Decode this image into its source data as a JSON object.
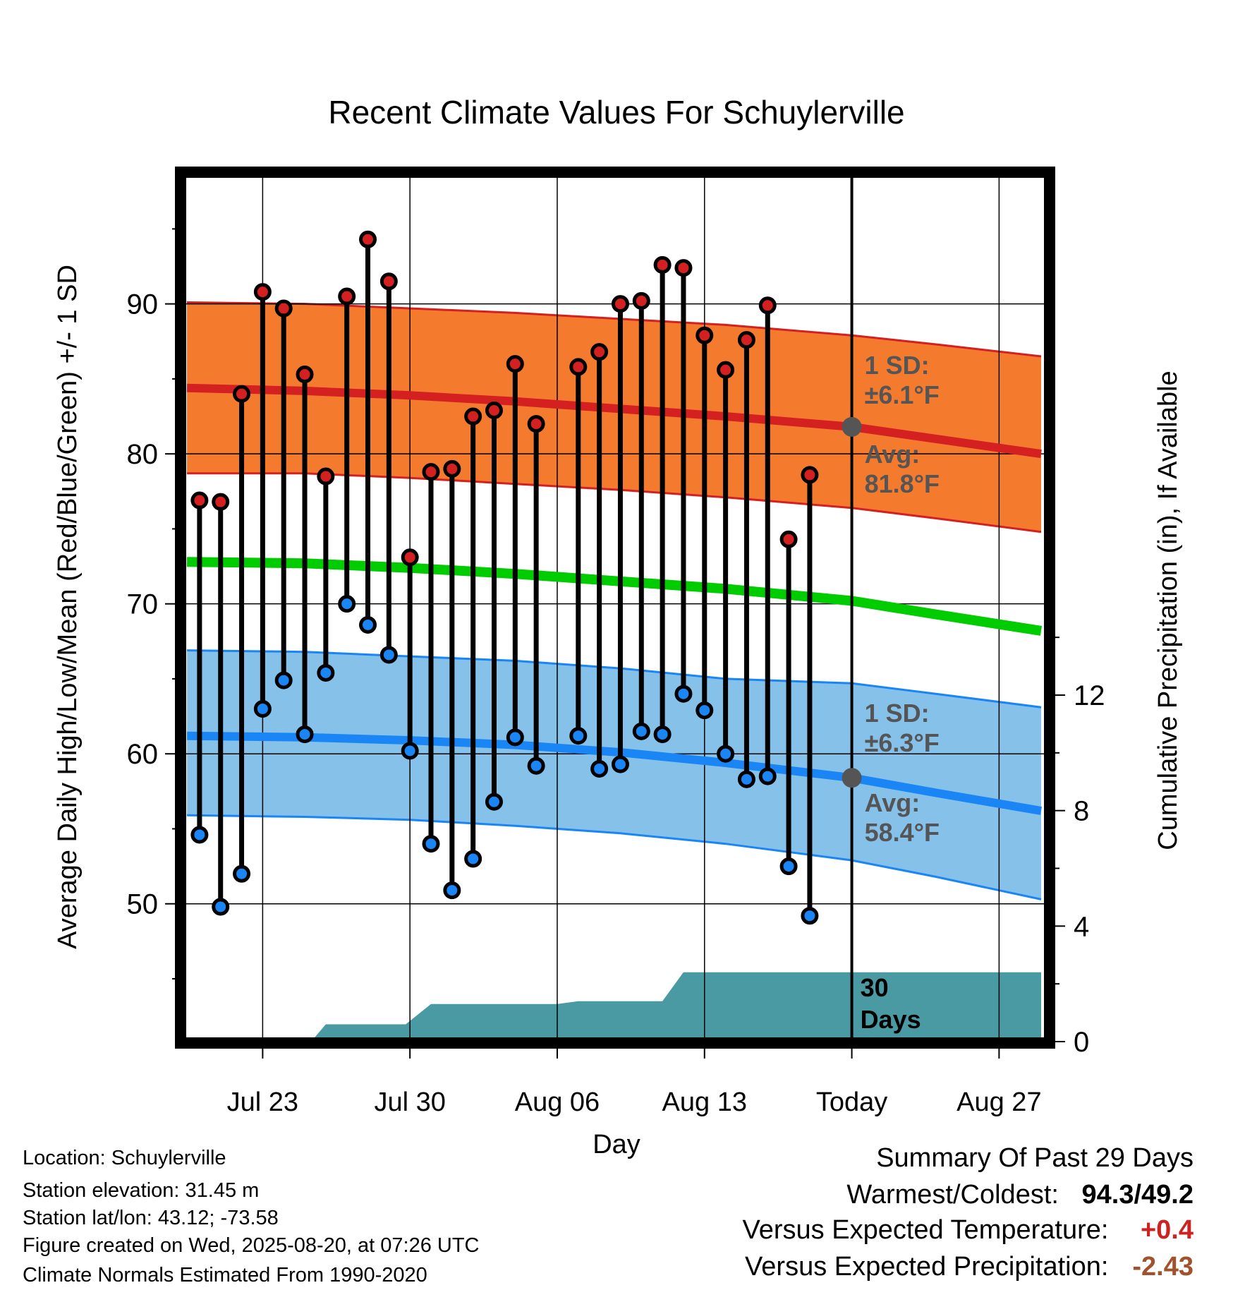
{
  "chart_data": {
    "type": "line",
    "title": "Recent Climate Values For Schuylerville",
    "xlabel": "Day",
    "ylabel": "Average Daily High/Low/Mean (Red/Blue/Green) +/- 1 SD",
    "ylabel_right": "Cumulative Precipitation (in), If Available",
    "x_ticks": [
      {
        "day": 3,
        "label": "Jul 23"
      },
      {
        "day": 10,
        "label": "Jul 30"
      },
      {
        "day": 17,
        "label": "Aug 06"
      },
      {
        "day": 24,
        "label": "Aug 13"
      },
      {
        "day": 31,
        "label": "Today"
      },
      {
        "day": 38,
        "label": "Aug 27"
      }
    ],
    "y_ticks": [
      50,
      60,
      70,
      80,
      90
    ],
    "y_ticks_right": [
      0,
      4,
      8,
      12
    ],
    "ylim": [
      41,
      98.5
    ],
    "ylim_right": [
      0,
      24
    ],
    "xlim": [
      -0.7,
      40.2
    ],
    "today_label": "30 Days",
    "normals": {
      "days": [
        -0.6,
        5,
        10,
        15,
        20,
        25,
        31,
        35,
        40
      ],
      "high_avg": [
        84.4,
        84.2,
        83.9,
        83.5,
        83.0,
        82.5,
        81.8,
        81.0,
        80.0
      ],
      "high_upper": [
        90.1,
        90.0,
        89.7,
        89.4,
        89.0,
        88.6,
        87.9,
        87.3,
        86.5
      ],
      "high_lower": [
        78.7,
        78.7,
        78.4,
        78.0,
        77.6,
        77.1,
        76.4,
        75.7,
        74.8
      ],
      "mean_avg": [
        72.8,
        72.7,
        72.4,
        72.0,
        71.5,
        71.0,
        70.2,
        69.3,
        68.2
      ],
      "low_avg": [
        61.2,
        61.1,
        60.9,
        60.6,
        60.1,
        59.4,
        58.4,
        57.4,
        56.2
      ],
      "low_upper": [
        66.9,
        66.8,
        66.5,
        66.2,
        65.7,
        65.0,
        64.7,
        64.0,
        63.1
      ],
      "low_lower": [
        55.9,
        55.8,
        55.6,
        55.2,
        54.7,
        54.0,
        52.9,
        51.8,
        50.3
      ]
    },
    "high_avg_label": "Avg: 81.8°F",
    "high_sd_label": "1 SD: ±6.1°F",
    "low_avg_label": "Avg: 58.4°F",
    "low_sd_label": "1 SD: ±6.3°F",
    "series": [
      {
        "name": "High",
        "days": [
          0,
          1,
          2,
          3,
          4,
          5,
          6,
          7,
          8,
          9,
          10,
          11,
          12,
          13,
          14,
          15,
          16,
          17,
          18,
          19,
          20,
          21,
          22,
          23,
          24,
          25,
          26,
          27,
          28,
          29
        ],
        "values": [
          76.9,
          76.8,
          84.0,
          90.8,
          89.7,
          85.3,
          78.5,
          90.5,
          94.3,
          91.5,
          73.1,
          78.8,
          79.0,
          82.5,
          82.9,
          86.0,
          82.0,
          null,
          85.8,
          86.8,
          90.0,
          90.2,
          92.6,
          92.4,
          87.9,
          85.6,
          87.6,
          89.9,
          74.3,
          78.6
        ]
      },
      {
        "name": "Low",
        "days": [
          0,
          1,
          2,
          3,
          4,
          5,
          6,
          7,
          8,
          9,
          10,
          11,
          12,
          13,
          14,
          15,
          16,
          17,
          18,
          19,
          20,
          21,
          22,
          23,
          24,
          25,
          26,
          27,
          28,
          29
        ],
        "values": [
          54.6,
          49.8,
          52.0,
          63.0,
          64.9,
          61.3,
          65.4,
          70.0,
          68.6,
          66.6,
          60.2,
          54.0,
          50.9,
          53.0,
          56.8,
          61.1,
          59.2,
          null,
          61.2,
          59.0,
          59.3,
          61.5,
          61.3,
          64.0,
          62.9,
          60.0,
          58.3,
          58.5,
          52.5,
          49.2
        ]
      }
    ],
    "precip": {
      "days": [
        5.3,
        6.0,
        9.8,
        11.0,
        17.0,
        18.0,
        22.0,
        23.0,
        40.0
      ],
      "values": [
        0.0,
        0.6,
        0.6,
        1.3,
        1.3,
        1.4,
        1.4,
        2.4,
        2.4
      ]
    }
  },
  "info": {
    "location": "Location: Schuylerville",
    "elevation": "Station elevation: 31.45 m",
    "latlon": "Station lat/lon: 43.12; -73.58",
    "created": "Figure created on Wed, 2025-08-20, at 07:26 UTC",
    "normals": "Climate Normals Estimated From 1990-2020"
  },
  "summary": {
    "title": "Summary Of Past 29 Days",
    "warmest_label": "Warmest/Coldest:",
    "warmest_value": "94.3/49.2",
    "temp_label": "Versus Expected Temperature:",
    "temp_value": "+0.4",
    "temp_color": "#cc2222",
    "precip_label": "Versus Expected Precipitation:",
    "precip_value": "-2.43",
    "precip_color": "#a0522d"
  },
  "colors": {
    "high_band": "#f47b2e",
    "high_line": "#d42020",
    "mean_line": "#00cc00",
    "low_band": "#85c1e9",
    "low_line": "#1a85f5",
    "precip_fill": "#4a9aa4",
    "marker_high": "#d42020",
    "marker_low": "#1a85f5",
    "label_gray": "#555555"
  }
}
